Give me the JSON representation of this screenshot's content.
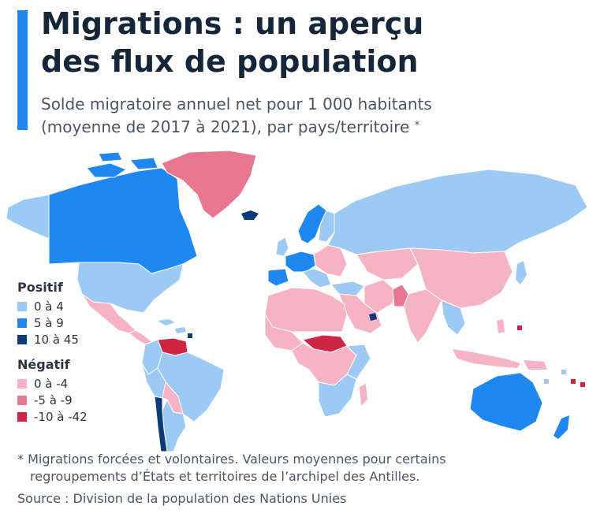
{
  "header": {
    "title_line1": "Migrations : un aperçu",
    "title_line2": "des flux de population",
    "subtitle_line1": "Solde migratoire annuel net pour 1 000 habitants",
    "subtitle_line2": "(moyenne de 2017 à 2021), par pays/territoire",
    "subtitle_marker": "*"
  },
  "legend": {
    "positive": {
      "heading": "Positif",
      "items": [
        {
          "label": "0 à 4",
          "color": "#9ccaf5"
        },
        {
          "label": "5 à 9",
          "color": "#1e88f0"
        },
        {
          "label": "10 à 45",
          "color": "#0d3a78"
        }
      ]
    },
    "negative": {
      "heading": "Négatif",
      "items": [
        {
          "label": "0 à -4",
          "color": "#f6b3c4"
        },
        {
          "label": "-5 à -9",
          "color": "#e8768f"
        },
        {
          "label": "-10 à -42",
          "color": "#cf2442"
        }
      ]
    }
  },
  "map_colors": {
    "positive_low": "#9ccaf5",
    "positive_mid": "#1e88f0",
    "positive_high": "#0d3a78",
    "negative_low": "#f6b3c4",
    "negative_mid": "#e8768f",
    "negative_high": "#cf2442"
  },
  "footnote": {
    "line1": "* Migrations forcées et volontaires. Valeurs moyennes pour certains",
    "line2": "regroupements d’États et territoires de l’archipel des Antilles."
  },
  "source": "Source : Division de la population des Nations Unies"
}
